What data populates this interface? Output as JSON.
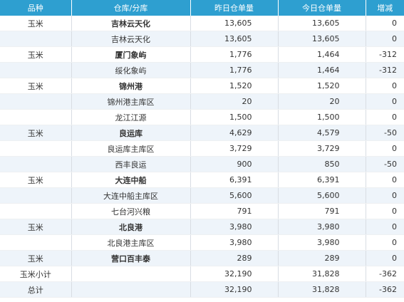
{
  "headers": [
    "品种",
    "仓库/分库",
    "昨日仓单量",
    "今日仓单量",
    "增减"
  ],
  "rows": [
    {
      "category": "玉米",
      "warehouse": "吉林云天化",
      "yesterday": "13,605",
      "today": "13,605",
      "change": "0",
      "bold": true
    },
    {
      "category": "",
      "warehouse": "吉林云天化",
      "yesterday": "13,605",
      "today": "13,605",
      "change": "0",
      "bold": false
    },
    {
      "category": "玉米",
      "warehouse": "厦门象屿",
      "yesterday": "1,776",
      "today": "1,464",
      "change": "-312",
      "bold": true
    },
    {
      "category": "",
      "warehouse": "绥化象屿",
      "yesterday": "1,776",
      "today": "1,464",
      "change": "-312",
      "bold": false
    },
    {
      "category": "玉米",
      "warehouse": "锦州港",
      "yesterday": "1,520",
      "today": "1,520",
      "change": "0",
      "bold": true
    },
    {
      "category": "",
      "warehouse": "锦州港主库区",
      "yesterday": "20",
      "today": "20",
      "change": "0",
      "bold": false
    },
    {
      "category": "",
      "warehouse": "龙江江源",
      "yesterday": "1,500",
      "today": "1,500",
      "change": "0",
      "bold": false
    },
    {
      "category": "玉米",
      "warehouse": "良运库",
      "yesterday": "4,629",
      "today": "4,579",
      "change": "-50",
      "bold": true
    },
    {
      "category": "",
      "warehouse": "良运库主库区",
      "yesterday": "3,729",
      "today": "3,729",
      "change": "0",
      "bold": false
    },
    {
      "category": "",
      "warehouse": "西丰良运",
      "yesterday": "900",
      "today": "850",
      "change": "-50",
      "bold": false
    },
    {
      "category": "玉米",
      "warehouse": "大连中船",
      "yesterday": "6,391",
      "today": "6,391",
      "change": "0",
      "bold": true
    },
    {
      "category": "",
      "warehouse": "大连中船主库区",
      "yesterday": "5,600",
      "today": "5,600",
      "change": "0",
      "bold": false
    },
    {
      "category": "",
      "warehouse": "七台河兴粮",
      "yesterday": "791",
      "today": "791",
      "change": "0",
      "bold": false
    },
    {
      "category": "玉米",
      "warehouse": "北良港",
      "yesterday": "3,980",
      "today": "3,980",
      "change": "0",
      "bold": true
    },
    {
      "category": "",
      "warehouse": "北良港主库区",
      "yesterday": "3,980",
      "today": "3,980",
      "change": "0",
      "bold": false
    },
    {
      "category": "玉米",
      "warehouse": "营口百丰泰",
      "yesterday": "289",
      "today": "289",
      "change": "0",
      "bold": true
    },
    {
      "category": "玉米小计",
      "warehouse": "",
      "yesterday": "32,190",
      "today": "31,828",
      "change": "-362",
      "bold": false
    },
    {
      "category": "总计",
      "warehouse": "",
      "yesterday": "32,190",
      "today": "31,828",
      "change": "-362",
      "bold": false
    }
  ],
  "colors": {
    "header_bg": "#2e9fd0",
    "alt_row_bg": "#eef4fa"
  }
}
